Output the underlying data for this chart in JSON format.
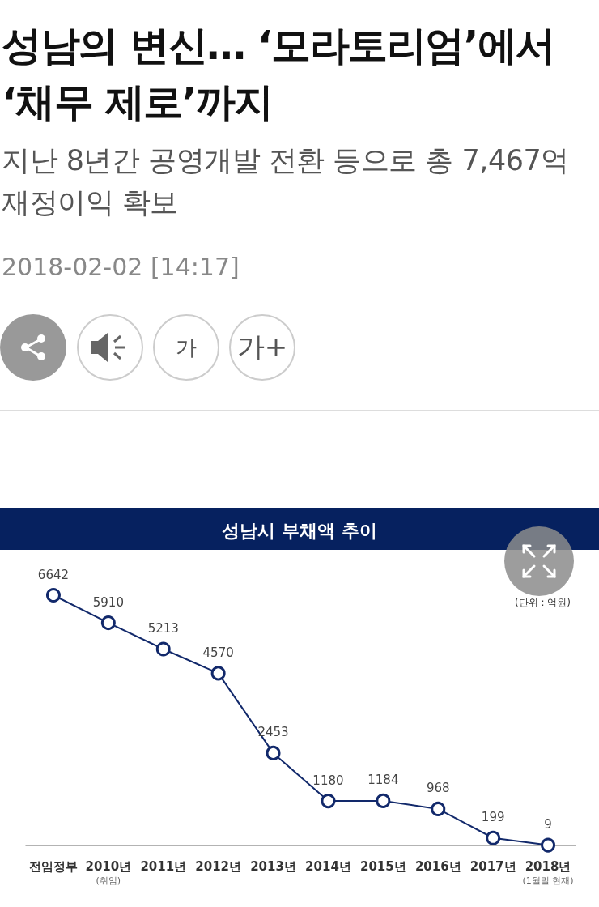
{
  "chart_data": {
    "type": "line",
    "title": "성남시 부채액 추이",
    "categories": [
      "전임정부",
      "2010년\n(취임)",
      "2011년",
      "2012년",
      "2013년",
      "2014년",
      "2015년",
      "2016년",
      "2017년",
      "2018년\n(1월말 현재)"
    ],
    "values": [
      6642,
      5910,
      5213,
      4570,
      2453,
      1180,
      1184,
      968,
      199,
      9
    ],
    "color": "#12296b",
    "marker": "circle",
    "line_style": "solid",
    "data_labels": true,
    "grid": false,
    "tick_labels": "x",
    "annotations": [
      "성남의 변신… ‘모라토리엄’에서 ‘채무 제로’까지",
      "지난 8년간 공영개발 전환 등으로 총 7,467억 재정이익 확보",
      "2018-02-02 [14:17]",
      "(단위 : 억원)",
      "가",
      "가+"
    ]
  }
}
